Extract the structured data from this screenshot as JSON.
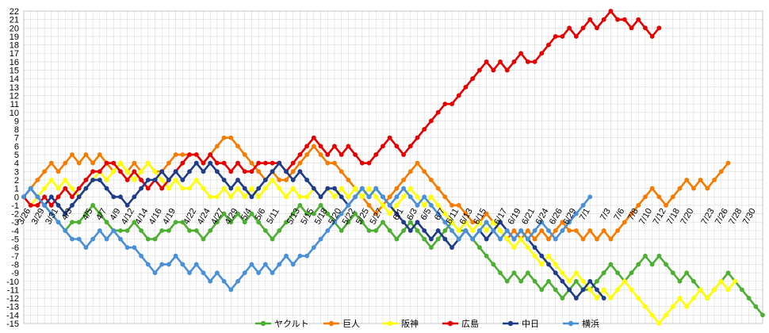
{
  "chart_data": {
    "type": "line",
    "ylim": [
      -15,
      22
    ],
    "y_ticks": [
      22,
      21,
      20,
      19,
      18,
      17,
      16,
      15,
      14,
      13,
      12,
      11,
      10,
      9,
      8,
      7,
      6,
      5,
      4,
      3,
      2,
      1,
      0,
      -1,
      -2,
      -3,
      -4,
      -5,
      -6,
      -7,
      -8,
      -9,
      -10,
      -11,
      -12,
      -13,
      -14,
      -15
    ],
    "x_tick_labels": [
      "3/26",
      "3/29",
      "3/31",
      "4/3",
      "4/5",
      "4/7",
      "4/9",
      "4/12",
      "4/14",
      "4/16",
      "4/19",
      "4/22",
      "4/24",
      "4/27",
      "4/29",
      "5/4",
      "5/6",
      "5/11",
      "5/13",
      "5/15",
      "5/18",
      "5/20",
      "5/22",
      "5/25",
      "5/27",
      "6/1",
      "6/3",
      "6/5",
      "6/7",
      "6/11",
      "6/13",
      "6/15",
      "6/17",
      "6/19",
      "6/21",
      "6/24",
      "6/26",
      "6/29",
      "7/1",
      "7/3",
      "7/6",
      "7/8",
      "7/10",
      "7/12",
      "7/18",
      "7/20",
      "7/23",
      "7/26",
      "7/28",
      "7/30"
    ],
    "games": 108,
    "grid": true,
    "legend_position": "bottom",
    "series": [
      {
        "name": "ヤクルト",
        "color": "#4caf32",
        "values": [
          0,
          1,
          0,
          -1,
          -2,
          -3,
          -4,
          -3,
          -3,
          -2,
          -1,
          -2,
          -3,
          -4,
          -4,
          -4,
          -3,
          -4,
          -5,
          -5,
          -4,
          -4,
          -3,
          -3,
          -4,
          -4,
          -5,
          -4,
          -3,
          -2,
          -3,
          -2,
          -3,
          -2,
          -3,
          -4,
          -5,
          -4,
          -3,
          -2,
          -1,
          -2,
          -2,
          -1,
          -2,
          -3,
          -4,
          -3,
          -2,
          -3,
          -4,
          -4,
          -3,
          -4,
          -5,
          -4,
          -3,
          -4,
          -5,
          -6,
          -5,
          -4,
          -3,
          -4,
          -4,
          -5,
          -6,
          -7,
          -8,
          -9,
          -10,
          -9,
          -10,
          -9,
          -10,
          -11,
          -10,
          -11,
          -12,
          -11,
          -10,
          -11,
          -11,
          -10,
          -9,
          -8,
          -9,
          -10,
          -9,
          -8,
          -7,
          -8,
          -7,
          -8,
          -9,
          -10,
          -9,
          -10,
          -11,
          -12,
          -11,
          -10,
          -9,
          -10,
          -11,
          -12,
          -13,
          -14
        ]
      },
      {
        "name": "巨人",
        "color": "#f57c00",
        "values": [
          0,
          1,
          2,
          3,
          4,
          3,
          4,
          5,
          4,
          5,
          4,
          5,
          4,
          3,
          4,
          3,
          4,
          3,
          4,
          3,
          3,
          4,
          5,
          5,
          5,
          5,
          4,
          5,
          6,
          7,
          7,
          6,
          5,
          4,
          3,
          2,
          3,
          2,
          2,
          3,
          4,
          5,
          6,
          5,
          4,
          4,
          3,
          2,
          1,
          0,
          -1,
          -2,
          -1,
          0,
          1,
          2,
          3,
          4,
          3,
          2,
          1,
          0,
          -1,
          -1,
          -2,
          -3,
          -3,
          -2,
          -3,
          -4,
          -5,
          -4,
          -5,
          -4,
          -5,
          -4,
          -5,
          -4,
          -3,
          -4,
          -4,
          -5,
          -4,
          -5,
          -4,
          -5,
          -4,
          -3,
          -2,
          -1,
          0,
          1,
          0,
          -1,
          0,
          1,
          2,
          1,
          2,
          1,
          2,
          3,
          4
        ]
      },
      {
        "name": "阪神",
        "color": "#ffff00",
        "values": [
          0,
          -1,
          0,
          1,
          2,
          1,
          2,
          1,
          0,
          1,
          2,
          3,
          2,
          3,
          4,
          3,
          2,
          3,
          4,
          3,
          2,
          1,
          2,
          1,
          1,
          2,
          1,
          0,
          0,
          1,
          0,
          1,
          0,
          1,
          0,
          1,
          2,
          1,
          0,
          1,
          0,
          0,
          1,
          0,
          1,
          0,
          1,
          0,
          1,
          0,
          1,
          0,
          -1,
          -2,
          -1,
          0,
          1,
          0,
          -1,
          0,
          -1,
          -2,
          -3,
          -4,
          -3,
          -4,
          -3,
          -4,
          -3,
          -4,
          -5,
          -6,
          -5,
          -6,
          -7,
          -8,
          -7,
          -8,
          -9,
          -10,
          -9,
          -10,
          -11,
          -12,
          -11,
          -12,
          -11,
          -10,
          -11,
          -12,
          -13,
          -14,
          -15,
          -14,
          -13,
          -12,
          -13,
          -12,
          -11,
          -12,
          -11,
          -10,
          -11,
          -10
        ]
      },
      {
        "name": "広島",
        "color": "#e60000",
        "values": [
          0,
          -1,
          -1,
          0,
          -1,
          0,
          1,
          0,
          1,
          2,
          3,
          3,
          4,
          4,
          3,
          2,
          3,
          2,
          1,
          2,
          1,
          2,
          3,
          4,
          5,
          5,
          4,
          5,
          4,
          4,
          3,
          4,
          3,
          3,
          4,
          4,
          4,
          4,
          3,
          4,
          5,
          6,
          7,
          6,
          5,
          6,
          5,
          6,
          5,
          4,
          4,
          5,
          6,
          7,
          6,
          5,
          6,
          7,
          8,
          9,
          10,
          11,
          11,
          12,
          13,
          14,
          15,
          16,
          15,
          16,
          15,
          16,
          17,
          16,
          16,
          17,
          18,
          19,
          19,
          20,
          19,
          20,
          21,
          20,
          21,
          22,
          21,
          21,
          20,
          21,
          20,
          19,
          20
        ]
      },
      {
        "name": "中日",
        "color": "#1f3c88",
        "values": [
          0,
          1,
          0,
          -1,
          0,
          -1,
          -2,
          -1,
          0,
          1,
          2,
          2,
          1,
          0,
          0,
          -1,
          0,
          1,
          2,
          2,
          3,
          2,
          3,
          2,
          3,
          4,
          3,
          4,
          3,
          2,
          1,
          2,
          1,
          0,
          1,
          2,
          3,
          4,
          3,
          2,
          3,
          2,
          1,
          0,
          1,
          1,
          0,
          -1,
          0,
          1,
          0,
          1,
          0,
          -1,
          -2,
          -3,
          -4,
          -3,
          -4,
          -5,
          -4,
          -5,
          -6,
          -5,
          -4,
          -5,
          -4,
          -5,
          -4,
          -3,
          -4,
          -5,
          -4,
          -5,
          -6,
          -7,
          -8,
          -9,
          -10,
          -11,
          -12,
          -11,
          -10,
          -11,
          -12
        ]
      },
      {
        "name": "横浜",
        "color": "#4a90d9",
        "values": [
          0,
          1,
          0,
          -1,
          -2,
          -3,
          -4,
          -5,
          -5,
          -6,
          -5,
          -4,
          -5,
          -4,
          -5,
          -6,
          -6,
          -7,
          -8,
          -9,
          -8,
          -8,
          -7,
          -8,
          -9,
          -8,
          -9,
          -10,
          -9,
          -10,
          -11,
          -10,
          -9,
          -8,
          -9,
          -8,
          -9,
          -8,
          -7,
          -8,
          -7,
          -7,
          -6,
          -5,
          -4,
          -3,
          -2,
          -1,
          0,
          1,
          0,
          1,
          0,
          -1,
          0,
          1,
          0,
          -1,
          0,
          -1,
          -2,
          -3,
          -4,
          -5,
          -4,
          -5,
          -4,
          -3,
          -4,
          -5,
          -4,
          -5,
          -4,
          -5,
          -4,
          -3,
          -4,
          -5,
          -4,
          -3,
          -2,
          -1,
          0
        ]
      }
    ]
  }
}
